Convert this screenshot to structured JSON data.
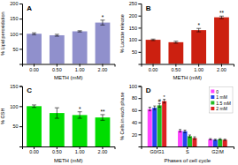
{
  "chart_data": [
    {
      "type": "bar",
      "title": "A",
      "xlabel": "METH (mM)",
      "ylabel": "% Lipid peroxidation",
      "categories": [
        "0.00",
        "0.50",
        "1.00",
        "2.00"
      ],
      "values": [
        100,
        95,
        108,
        137
      ],
      "errors": [
        3,
        3,
        2,
        8
      ],
      "color": "#9090cc",
      "ylim": [
        0,
        200
      ],
      "yticks": [
        50,
        100,
        150,
        200
      ],
      "grid": false,
      "annotations": [
        {
          "text": "*",
          "category": "2.00"
        }
      ]
    },
    {
      "type": "bar",
      "title": "B",
      "xlabel": "METH (mM)",
      "ylabel": "% Lactate release",
      "categories": [
        "0.00",
        "0.50",
        "1.00",
        "2.00"
      ],
      "values": [
        100,
        90,
        140,
        193
      ],
      "errors": [
        3,
        4,
        7,
        5
      ],
      "color": "#cc2010",
      "ylim": [
        0,
        250
      ],
      "yticks": [
        50,
        100,
        150,
        200,
        250
      ],
      "grid": false,
      "annotations": [
        {
          "text": "*",
          "category": "1.00"
        },
        {
          "text": "**",
          "category": "2.00"
        }
      ]
    },
    {
      "type": "bar",
      "title": "C",
      "xlabel": "METH (mM)",
      "ylabel": "% GSH",
      "categories": [
        "0.00",
        "0.50",
        "1.00",
        "2.00"
      ],
      "values": [
        100,
        83,
        78,
        72
      ],
      "errors": [
        3,
        13,
        8,
        7
      ],
      "color": "#00dd00",
      "ylim": [
        0,
        150
      ],
      "yticks": [
        50,
        100,
        150
      ],
      "grid": false,
      "annotations": [
        {
          "text": "*",
          "category": "1.00"
        },
        {
          "text": "**",
          "category": "2.00"
        }
      ]
    },
    {
      "type": "bar",
      "title": "D",
      "xlabel": "Phases of cell cycle",
      "ylabel": "% Cells in each phase",
      "categories": [
        "G0/G1",
        "S",
        "G2/M"
      ],
      "series": [
        {
          "name": "0",
          "color": "#ff44ff",
          "values": [
            62,
            26,
            12
          ],
          "errors": [
            3,
            2,
            1
          ]
        },
        {
          "name": "1 mM",
          "color": "#2244ee",
          "values": [
            64,
            25,
            11
          ],
          "errors": [
            3,
            2,
            1
          ]
        },
        {
          "name": "1.5 mM",
          "color": "#22bb22",
          "values": [
            68,
            17,
            12
          ],
          "errors": [
            3,
            2,
            1
          ]
        },
        {
          "name": "2 mM",
          "color": "#dd2222",
          "values": [
            75,
            14,
            11
          ],
          "errors": [
            3,
            2,
            1
          ]
        }
      ],
      "ylim": [
        0,
        100
      ],
      "yticks": [
        20,
        40,
        60,
        80,
        100
      ],
      "grid": false,
      "legend": "upper right",
      "annotations": [
        {
          "text": "#",
          "category": "G0/G1",
          "series": "1.5 mM"
        },
        {
          "text": "*",
          "category": "G0/G1",
          "series": "2 mM"
        }
      ]
    }
  ]
}
